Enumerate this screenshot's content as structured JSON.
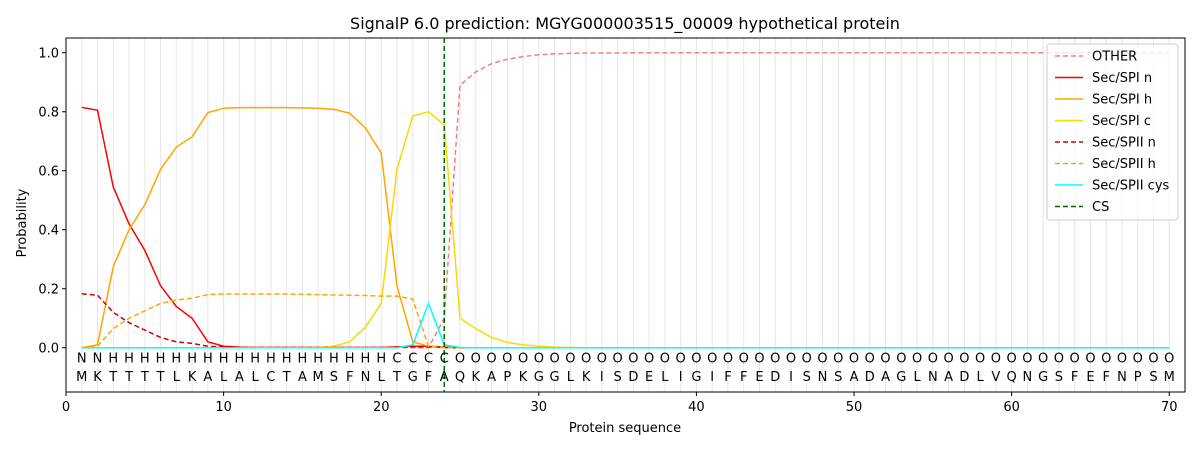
{
  "chart_data": {
    "type": "line",
    "title": "SignalP 6.0 prediction: MGYG000003515_00009 hypothetical protein",
    "xlabel": "Protein sequence",
    "ylabel": "Probability",
    "xlim": [
      0,
      71
    ],
    "ylim": [
      -0.15,
      1.05
    ],
    "x_ticks": [
      0,
      10,
      20,
      30,
      40,
      50,
      60,
      70
    ],
    "y_ticks": [
      0.0,
      0.2,
      0.4,
      0.6,
      0.8,
      1.0
    ],
    "x_tick_labels": [
      "0",
      "10",
      "20",
      "30",
      "40",
      "50",
      "60",
      "70"
    ],
    "y_tick_labels": [
      "0.0",
      "0.2",
      "0.4",
      "0.6",
      "0.8",
      "1.0"
    ],
    "legend_position": "top-right",
    "cleavage_site": 24,
    "sequence": [
      "M",
      "K",
      "T",
      "T",
      "T",
      "T",
      "L",
      "K",
      "A",
      "L",
      "A",
      "L",
      "C",
      "T",
      "A",
      "M",
      "S",
      "F",
      "N",
      "L",
      "T",
      "G",
      "F",
      "A",
      "Q",
      "K",
      "A",
      "P",
      "K",
      "G",
      "G",
      "L",
      "K",
      "I",
      "S",
      "D",
      "E",
      "L",
      "I",
      "G",
      "I",
      "F",
      "F",
      "E",
      "D",
      "I",
      "S",
      "N",
      "S",
      "A",
      "D",
      "A",
      "G",
      "L",
      "N",
      "A",
      "D",
      "L",
      "V",
      "Q",
      "N",
      "G",
      "S",
      "F",
      "E",
      "F",
      "N",
      "P",
      "S",
      "M"
    ],
    "region_labels": [
      "N",
      "N",
      "H",
      "H",
      "H",
      "H",
      "H",
      "H",
      "H",
      "H",
      "H",
      "H",
      "H",
      "H",
      "H",
      "H",
      "H",
      "H",
      "H",
      "H",
      "C",
      "C",
      "C",
      "C",
      "O",
      "O",
      "O",
      "O",
      "O",
      "O",
      "O",
      "O",
      "O",
      "O",
      "O",
      "O",
      "O",
      "O",
      "O",
      "O",
      "O",
      "O",
      "O",
      "O",
      "O",
      "O",
      "O",
      "O",
      "O",
      "O",
      "O",
      "O",
      "O",
      "O",
      "O",
      "O",
      "O",
      "O",
      "O",
      "O",
      "O",
      "O",
      "O",
      "O",
      "O",
      "O",
      "O",
      "O",
      "O",
      "O"
    ],
    "region_colors": {
      "N": "#ff0000",
      "H": "#ffa500",
      "C": "#ffd700",
      "O": "#808080"
    },
    "series": [
      {
        "name": "OTHER",
        "color": "#f08080",
        "dash": "dashed",
        "values": [
          0.0,
          0.0,
          0.0,
          0.0,
          0.0,
          0.0,
          0.0,
          0.0,
          0.0,
          0.0,
          0.0,
          0.0,
          0.0,
          0.0,
          0.0,
          0.0,
          0.0,
          0.0,
          0.0,
          0.0,
          0.0,
          0.0,
          0.0,
          0.1,
          0.89,
          0.935,
          0.963,
          0.978,
          0.987,
          0.993,
          0.996,
          0.998,
          0.999,
          0.999,
          0.999,
          1.0,
          1.0,
          1.0,
          1.0,
          1.0,
          1.0,
          1.0,
          1.0,
          1.0,
          1.0,
          1.0,
          1.0,
          1.0,
          1.0,
          1.0,
          1.0,
          1.0,
          1.0,
          1.0,
          1.0,
          1.0,
          1.0,
          1.0,
          1.0,
          1.0,
          1.0,
          1.0,
          1.0,
          1.0,
          1.0,
          1.0,
          1.0,
          1.0,
          1.0,
          1.0
        ]
      },
      {
        "name": "Sec/SPI n",
        "color": "#ff0000",
        "dash": "solid",
        "values": [
          0.815,
          0.805,
          0.545,
          0.42,
          0.33,
          0.21,
          0.14,
          0.1,
          0.02,
          0.005,
          0.002,
          0.001,
          0.001,
          0.001,
          0.001,
          0.001,
          0.001,
          0.001,
          0.001,
          0.001,
          0.003,
          0.005,
          0.005,
          0.002,
          0.0,
          0.0,
          0.0,
          0.0,
          0.0,
          0.0,
          0.0,
          0.0,
          0.0,
          0.0,
          0.0,
          0.0,
          0.0,
          0.0,
          0.0,
          0.0,
          0.0,
          0.0,
          0.0,
          0.0,
          0.0,
          0.0,
          0.0,
          0.0,
          0.0,
          0.0,
          0.0,
          0.0,
          0.0,
          0.0,
          0.0,
          0.0,
          0.0,
          0.0,
          0.0,
          0.0,
          0.0,
          0.0,
          0.0,
          0.0,
          0.0,
          0.0,
          0.0,
          0.0,
          0.0,
          0.0
        ]
      },
      {
        "name": "Sec/SPI h",
        "color": "#ffa500",
        "dash": "solid",
        "values": [
          0.0,
          0.01,
          0.275,
          0.4,
          0.485,
          0.605,
          0.68,
          0.715,
          0.797,
          0.812,
          0.814,
          0.814,
          0.814,
          0.814,
          0.813,
          0.812,
          0.808,
          0.795,
          0.745,
          0.66,
          0.21,
          0.02,
          0.005,
          0.001,
          0.0,
          0.0,
          0.0,
          0.0,
          0.0,
          0.0,
          0.0,
          0.0,
          0.0,
          0.0,
          0.0,
          0.0,
          0.0,
          0.0,
          0.0,
          0.0,
          0.0,
          0.0,
          0.0,
          0.0,
          0.0,
          0.0,
          0.0,
          0.0,
          0.0,
          0.0,
          0.0,
          0.0,
          0.0,
          0.0,
          0.0,
          0.0,
          0.0,
          0.0,
          0.0,
          0.0,
          0.0,
          0.0,
          0.0,
          0.0,
          0.0,
          0.0,
          0.0,
          0.0,
          0.0,
          0.0
        ]
      },
      {
        "name": "Sec/SPI c",
        "color": "#ffd700",
        "dash": "solid",
        "values": [
          0.0,
          0.0,
          0.0,
          0.0,
          0.0,
          0.0,
          0.0,
          0.0,
          0.0,
          0.0,
          0.0,
          0.0,
          0.0,
          0.0,
          0.0,
          0.001,
          0.005,
          0.02,
          0.07,
          0.15,
          0.605,
          0.785,
          0.8,
          0.755,
          0.1,
          0.065,
          0.035,
          0.018,
          0.01,
          0.005,
          0.002,
          0.001,
          0.0,
          0.0,
          0.0,
          0.0,
          0.0,
          0.0,
          0.0,
          0.0,
          0.0,
          0.0,
          0.0,
          0.0,
          0.0,
          0.0,
          0.0,
          0.0,
          0.0,
          0.0,
          0.0,
          0.0,
          0.0,
          0.0,
          0.0,
          0.0,
          0.0,
          0.0,
          0.0,
          0.0,
          0.0,
          0.0,
          0.0,
          0.0,
          0.0,
          0.0,
          0.0,
          0.0,
          0.0,
          0.0
        ]
      },
      {
        "name": "Sec/SPII n",
        "color": "#cc0000",
        "dash": "dashed",
        "values": [
          0.183,
          0.178,
          0.12,
          0.085,
          0.06,
          0.035,
          0.02,
          0.015,
          0.005,
          0.002,
          0.001,
          0.001,
          0.001,
          0.001,
          0.001,
          0.001,
          0.001,
          0.001,
          0.001,
          0.001,
          0.002,
          0.003,
          0.003,
          0.001,
          0.0,
          0.0,
          0.0,
          0.0,
          0.0,
          0.0,
          0.0,
          0.0,
          0.0,
          0.0,
          0.0,
          0.0,
          0.0,
          0.0,
          0.0,
          0.0,
          0.0,
          0.0,
          0.0,
          0.0,
          0.0,
          0.0,
          0.0,
          0.0,
          0.0,
          0.0,
          0.0,
          0.0,
          0.0,
          0.0,
          0.0,
          0.0,
          0.0,
          0.0,
          0.0,
          0.0,
          0.0,
          0.0,
          0.0,
          0.0,
          0.0,
          0.0,
          0.0,
          0.0,
          0.0,
          0.0
        ]
      },
      {
        "name": "Sec/SPII h",
        "color": "#ffa500",
        "dash": "dashed",
        "values": [
          0.0,
          0.005,
          0.065,
          0.1,
          0.125,
          0.15,
          0.162,
          0.168,
          0.18,
          0.182,
          0.182,
          0.182,
          0.182,
          0.182,
          0.181,
          0.18,
          0.179,
          0.178,
          0.177,
          0.175,
          0.175,
          0.165,
          0.005,
          0.0,
          0.0,
          0.0,
          0.0,
          0.0,
          0.0,
          0.0,
          0.0,
          0.0,
          0.0,
          0.0,
          0.0,
          0.0,
          0.0,
          0.0,
          0.0,
          0.0,
          0.0,
          0.0,
          0.0,
          0.0,
          0.0,
          0.0,
          0.0,
          0.0,
          0.0,
          0.0,
          0.0,
          0.0,
          0.0,
          0.0,
          0.0,
          0.0,
          0.0,
          0.0,
          0.0,
          0.0,
          0.0,
          0.0,
          0.0,
          0.0,
          0.0,
          0.0,
          0.0,
          0.0,
          0.0,
          0.0
        ]
      },
      {
        "name": "Sec/SPII cys",
        "color": "#00ffff",
        "dash": "solid",
        "values": [
          0.0,
          0.0,
          0.0,
          0.0,
          0.0,
          0.0,
          0.0,
          0.0,
          0.0,
          0.0,
          0.0,
          0.0,
          0.0,
          0.0,
          0.0,
          0.0,
          0.0,
          0.0,
          0.0,
          0.0,
          0.0,
          0.01,
          0.15,
          0.01,
          0.001,
          0.0,
          0.0,
          0.0,
          0.0,
          0.0,
          0.0,
          0.0,
          0.0,
          0.0,
          0.0,
          0.0,
          0.0,
          0.0,
          0.0,
          0.0,
          0.0,
          0.0,
          0.0,
          0.0,
          0.0,
          0.0,
          0.0,
          0.0,
          0.0,
          0.0,
          0.0,
          0.0,
          0.0,
          0.0,
          0.0,
          0.0,
          0.0,
          0.0,
          0.0,
          0.0,
          0.0,
          0.0,
          0.0,
          0.0,
          0.0,
          0.0,
          0.0,
          0.0,
          0.0,
          0.0
        ]
      },
      {
        "name": "CS",
        "color": "#006400",
        "dash": "dashed",
        "values": []
      }
    ]
  }
}
